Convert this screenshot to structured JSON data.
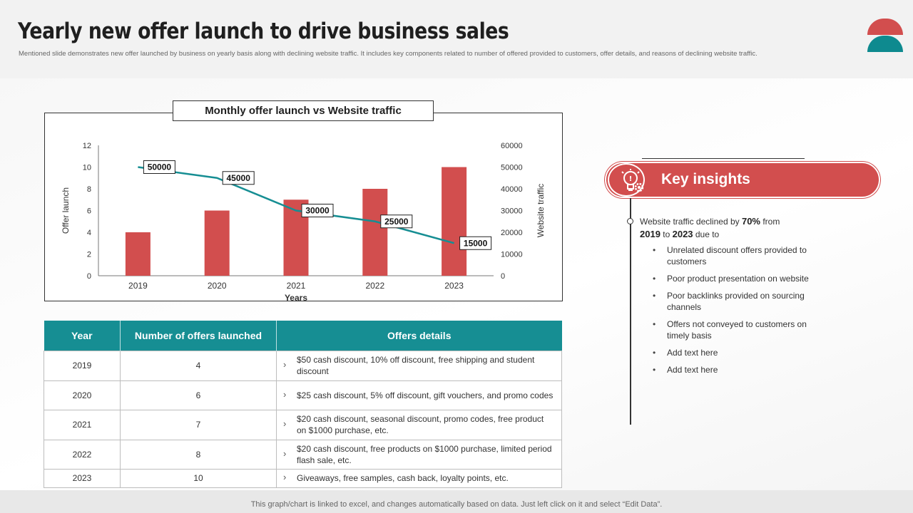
{
  "header": {
    "title": "Yearly new offer launch to drive business sales",
    "subtitle": "Mentioned slide demonstrates new offer launched by business on yearly basis along with declining website traffic. It includes key components related to number of offered provided to customers, offer details, and reasons of declining website traffic."
  },
  "colors": {
    "bar": "#d24e4e",
    "line": "#168e93",
    "header_teal": "#168e93",
    "accent_red": "#d24e4e"
  },
  "chart_data": {
    "type": "bar",
    "title": "Monthly offer launch vs Website traffic",
    "categories": [
      "2019",
      "2020",
      "2021",
      "2022",
      "2023"
    ],
    "series": [
      {
        "name": "Offer launch",
        "type": "bar",
        "axis": "left",
        "values": [
          4,
          6,
          7,
          8,
          10
        ]
      },
      {
        "name": "Website traffic",
        "type": "line",
        "axis": "right",
        "values": [
          50000,
          45000,
          30000,
          25000,
          15000
        ],
        "labels": [
          "50000",
          "45000",
          "30000",
          "25000",
          "15000"
        ]
      }
    ],
    "xlabel": "Years",
    "ylabel": "Offer launch",
    "y2label": "Website traffic",
    "ylim": [
      0,
      12
    ],
    "y2lim": [
      0,
      60000
    ],
    "yticks": [
      "0",
      "2",
      "4",
      "6",
      "8",
      "10",
      "12"
    ],
    "y2ticks": [
      "0",
      "10000",
      "20000",
      "30000",
      "40000",
      "50000",
      "60000"
    ]
  },
  "table": {
    "headers": [
      "Year",
      "Number of offers launched",
      "Offers details"
    ],
    "rows": [
      {
        "year": "2019",
        "count": "4",
        "details": "$50 cash discount, 10% off discount, free shipping and student discount"
      },
      {
        "year": "2020",
        "count": "6",
        "details": "$25 cash discount, 5% off discount, gift vouchers, and promo codes"
      },
      {
        "year": "2021",
        "count": "7",
        "details": "$20 cash discount, seasonal discount, promo codes, free product on $1000 purchase, etc."
      },
      {
        "year": "2022",
        "count": "8",
        "details": "$20 cash discount, free products on $1000 purchase, limited period flash sale, etc."
      },
      {
        "year": "2023",
        "count": "10",
        "details": "Giveaways, free samples, cash back, loyalty points, etc."
      }
    ]
  },
  "insights": {
    "title": "Key insights",
    "lead_prefix": "Website traffic declined by ",
    "lead_pct": "70%",
    "lead_mid": " from ",
    "lead_from": "2019",
    "lead_to_word": " to ",
    "lead_to": "2023",
    "lead_suffix": " due to",
    "bullets": [
      "Unrelated discount offers provided to customers",
      "Poor product presentation on website",
      "Poor backlinks provided on sourcing channels",
      "Offers not conveyed to customers on timely basis",
      "Add text here",
      "Add text here"
    ]
  },
  "footer": {
    "note": "This graph/chart is linked to excel, and changes automatically based on data. Just left click on it and select “Edit Data”."
  }
}
